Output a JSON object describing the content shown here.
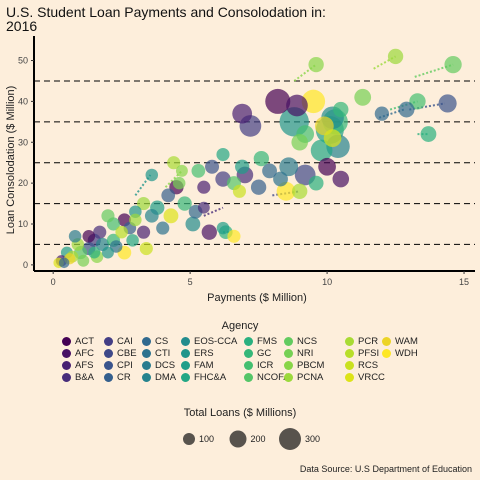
{
  "page": {
    "title": "U.S. Student Loan Payments and Consolodation in:\n2016",
    "source": "Data Source: U.S Department of Education"
  },
  "chart_data": {
    "type": "scatter",
    "title": "U.S. Student Loan Payments and Consolodation in:\n2016",
    "xlabel": "Payments ($ Million)",
    "ylabel": "Loan Consolodation ($ Million)",
    "xlim": [
      -0.7,
      15.4
    ],
    "ylim": [
      -1.5,
      56
    ],
    "xticks": [
      0,
      5,
      10,
      15
    ],
    "yticks": [
      0,
      10,
      20,
      30,
      40,
      50
    ],
    "hlines": [
      5,
      15,
      25,
      35,
      45
    ],
    "grid": false,
    "legend_title": "Agency",
    "size_legend_title": "Total Loans ($ Millions)",
    "size_legend_values": [
      100,
      200,
      300
    ],
    "agencies": [
      {
        "name": "ACT",
        "color": "#440154"
      },
      {
        "name": "AFC",
        "color": "#471164"
      },
      {
        "name": "AFS",
        "color": "#482072"
      },
      {
        "name": "B&A",
        "color": "#472d7b"
      },
      {
        "name": "CAI",
        "color": "#433e85"
      },
      {
        "name": "CBE",
        "color": "#3e4989"
      },
      {
        "name": "CPI",
        "color": "#3a548c"
      },
      {
        "name": "CR",
        "color": "#345f8d"
      },
      {
        "name": "CS",
        "color": "#30698e"
      },
      {
        "name": "CTI",
        "color": "#2c728e"
      },
      {
        "name": "DCS",
        "color": "#297b8e"
      },
      {
        "name": "DMA",
        "color": "#25838e"
      },
      {
        "name": "EOS-CCA",
        "color": "#228c8d"
      },
      {
        "name": "ERS",
        "color": "#1f958b"
      },
      {
        "name": "FAM",
        "color": "#1f9e89"
      },
      {
        "name": "FHC&A",
        "color": "#22a785"
      },
      {
        "name": "FMS",
        "color": "#2ab07f"
      },
      {
        "name": "GC",
        "color": "#35b779"
      },
      {
        "name": "ICR",
        "color": "#44bf70"
      },
      {
        "name": "NCOFA",
        "color": "#54c568"
      },
      {
        "name": "NCS",
        "color": "#62cb5f"
      },
      {
        "name": "NRI",
        "color": "#75d054"
      },
      {
        "name": "PBCM",
        "color": "#88d548"
      },
      {
        "name": "PCNA",
        "color": "#9bd93c"
      },
      {
        "name": "PCR",
        "color": "#a8db34"
      },
      {
        "name": "PFSI",
        "color": "#b8de29"
      },
      {
        "name": "RCS",
        "color": "#cae11f"
      },
      {
        "name": "VRCC",
        "color": "#dde318"
      },
      {
        "name": "WAM",
        "color": "#ecd426"
      },
      {
        "name": "WDH",
        "color": "#fde725"
      }
    ],
    "trails": [
      {
        "x": [
          3.0,
          3.55
        ],
        "y": [
          17,
          22
        ],
        "agency": "ERS"
      },
      {
        "x": [
          4.1,
          4.7
        ],
        "y": [
          19,
          23
        ],
        "agency": "PBCM"
      },
      {
        "x": [
          8.8,
          9.6
        ],
        "y": [
          45,
          49
        ],
        "agency": "PBCM"
      },
      {
        "x": [
          11.7,
          12.5
        ],
        "y": [
          48,
          51
        ],
        "agency": "PCNA"
      },
      {
        "x": [
          13.2,
          14.6
        ],
        "y": [
          46,
          49
        ],
        "agency": "NCS"
      },
      {
        "x": [
          11.9,
          12.8
        ],
        "y": [
          36,
          38
        ],
        "agency": "CS"
      },
      {
        "x": [
          12.3,
          13.3
        ],
        "y": [
          38,
          40
        ],
        "agency": "ICR"
      },
      {
        "x": [
          13.0,
          14.3
        ],
        "y": [
          38,
          39.5
        ],
        "agency": "CPI"
      },
      {
        "x": [
          13.3,
          13.7
        ],
        "y": [
          32,
          32
        ],
        "agency": "FMS"
      },
      {
        "x": [
          6.2,
          6.5
        ],
        "y": [
          8,
          8
        ],
        "agency": "FAM"
      },
      {
        "x": [
          5.5,
          6.2
        ],
        "y": [
          12,
          14
        ],
        "agency": "B&A"
      },
      {
        "x": [
          8.0,
          9.0
        ],
        "y": [
          17,
          18
        ],
        "agency": "CBE"
      }
    ],
    "points": [
      {
        "x": 9.6,
        "y": 49,
        "size": 30,
        "agency": "PBCM"
      },
      {
        "x": 12.5,
        "y": 51,
        "size": 30,
        "agency": "PCNA"
      },
      {
        "x": 14.6,
        "y": 49,
        "size": 38,
        "agency": "NCS"
      },
      {
        "x": 11.3,
        "y": 41,
        "size": 36,
        "agency": "NRI"
      },
      {
        "x": 12.9,
        "y": 38,
        "size": 32,
        "agency": "CS"
      },
      {
        "x": 13.3,
        "y": 40,
        "size": 34,
        "agency": "ICR"
      },
      {
        "x": 14.4,
        "y": 39.5,
        "size": 42,
        "agency": "CPI"
      },
      {
        "x": 13.7,
        "y": 32,
        "size": 32,
        "agency": "FMS"
      },
      {
        "x": 12.0,
        "y": 37,
        "size": 26,
        "agency": "CS"
      },
      {
        "x": 10.5,
        "y": 38,
        "size": 30,
        "agency": "GC"
      },
      {
        "x": 8.2,
        "y": 40,
        "size": 80,
        "agency": "ACT"
      },
      {
        "x": 8.9,
        "y": 39,
        "size": 60,
        "agency": "AFC"
      },
      {
        "x": 6.9,
        "y": 37,
        "size": 50,
        "agency": "AFS"
      },
      {
        "x": 7.2,
        "y": 34,
        "size": 60,
        "agency": "CAI"
      },
      {
        "x": 9.5,
        "y": 40,
        "size": 70,
        "agency": "WDH"
      },
      {
        "x": 10.2,
        "y": 36,
        "size": 65,
        "agency": "EOS-CCA"
      },
      {
        "x": 8.8,
        "y": 35,
        "size": 110,
        "agency": "ERS"
      },
      {
        "x": 10.1,
        "y": 33,
        "size": 100,
        "agency": "FAM"
      },
      {
        "x": 10.3,
        "y": 35,
        "size": 80,
        "agency": "GC"
      },
      {
        "x": 10.4,
        "y": 29,
        "size": 70,
        "agency": "DMA"
      },
      {
        "x": 9.8,
        "y": 28,
        "size": 60,
        "agency": "FHC&A"
      },
      {
        "x": 9.2,
        "y": 32,
        "size": 40,
        "agency": "ICR"
      },
      {
        "x": 9.0,
        "y": 30,
        "size": 35,
        "agency": "NRI"
      },
      {
        "x": 10.2,
        "y": 31,
        "size": 40,
        "agency": "VRCC"
      },
      {
        "x": 9.9,
        "y": 34,
        "size": 45,
        "agency": "WAM"
      },
      {
        "x": 9.2,
        "y": 22,
        "size": 55,
        "agency": "CBE"
      },
      {
        "x": 8.6,
        "y": 24,
        "size": 45,
        "agency": "DCS"
      },
      {
        "x": 10.0,
        "y": 24,
        "size": 40,
        "agency": "ACT"
      },
      {
        "x": 10.5,
        "y": 21,
        "size": 35,
        "agency": "AFC"
      },
      {
        "x": 9.6,
        "y": 20,
        "size": 28,
        "agency": "FMS"
      },
      {
        "x": 8.5,
        "y": 18,
        "size": 45,
        "agency": "WDH"
      },
      {
        "x": 9.0,
        "y": 18,
        "size": 30,
        "agency": "PCR"
      },
      {
        "x": 8.3,
        "y": 21,
        "size": 28,
        "agency": "CTI"
      },
      {
        "x": 7.5,
        "y": 19,
        "size": 30,
        "agency": "CR"
      },
      {
        "x": 7.0,
        "y": 22,
        "size": 35,
        "agency": "B&A"
      },
      {
        "x": 7.6,
        "y": 26,
        "size": 30,
        "agency": "GC"
      },
      {
        "x": 7.9,
        "y": 23,
        "size": 28,
        "agency": "CS"
      },
      {
        "x": 6.2,
        "y": 21,
        "size": 30,
        "agency": "CAI"
      },
      {
        "x": 6.9,
        "y": 24,
        "size": 26,
        "agency": "FAM"
      },
      {
        "x": 6.6,
        "y": 20,
        "size": 25,
        "agency": "NCOFA"
      },
      {
        "x": 6.2,
        "y": 27,
        "size": 22,
        "agency": "FHC&A"
      },
      {
        "x": 5.8,
        "y": 24,
        "size": 25,
        "agency": "CPI"
      },
      {
        "x": 5.5,
        "y": 19,
        "size": 22,
        "agency": "AFS"
      },
      {
        "x": 5.3,
        "y": 23,
        "size": 24,
        "agency": "ICR"
      },
      {
        "x": 6.8,
        "y": 18,
        "size": 22,
        "agency": "RCS"
      },
      {
        "x": 4.5,
        "y": 19,
        "size": 26,
        "agency": "ACT"
      },
      {
        "x": 4.2,
        "y": 17,
        "size": 24,
        "agency": "CR"
      },
      {
        "x": 3.6,
        "y": 22,
        "size": 20,
        "agency": "ERS"
      },
      {
        "x": 4.7,
        "y": 23,
        "size": 18,
        "agency": "PBCM"
      },
      {
        "x": 4.6,
        "y": 20,
        "size": 20,
        "agency": "NRI"
      },
      {
        "x": 4.4,
        "y": 25,
        "size": 22,
        "agency": "PCR"
      },
      {
        "x": 3.8,
        "y": 14,
        "size": 26,
        "agency": "FAM"
      },
      {
        "x": 3.3,
        "y": 15,
        "size": 22,
        "agency": "PCNA"
      },
      {
        "x": 3.6,
        "y": 12,
        "size": 24,
        "agency": "DMA"
      },
      {
        "x": 4.3,
        "y": 12,
        "size": 28,
        "agency": "VRCC"
      },
      {
        "x": 4.8,
        "y": 15,
        "size": 26,
        "agency": "GC"
      },
      {
        "x": 5.2,
        "y": 13,
        "size": 24,
        "agency": "CS"
      },
      {
        "x": 5.1,
        "y": 10,
        "size": 28,
        "agency": "EOS-CCA"
      },
      {
        "x": 5.7,
        "y": 8,
        "size": 30,
        "agency": "AFC"
      },
      {
        "x": 6.3,
        "y": 8,
        "size": 24,
        "agency": "FMS"
      },
      {
        "x": 6.6,
        "y": 7,
        "size": 22,
        "agency": "WDH"
      },
      {
        "x": 4.0,
        "y": 9,
        "size": 22,
        "agency": "CTI"
      },
      {
        "x": 3.3,
        "y": 8,
        "size": 22,
        "agency": "AFS"
      },
      {
        "x": 2.6,
        "y": 11,
        "size": 22,
        "agency": "ACT"
      },
      {
        "x": 2.8,
        "y": 9,
        "size": 20,
        "agency": "CR"
      },
      {
        "x": 2.2,
        "y": 10,
        "size": 22,
        "agency": "ICR"
      },
      {
        "x": 2.0,
        "y": 12,
        "size": 22,
        "agency": "NCS"
      },
      {
        "x": 3.0,
        "y": 13,
        "size": 20,
        "agency": "ERS"
      },
      {
        "x": 2.5,
        "y": 8,
        "size": 20,
        "agency": "PFSI"
      },
      {
        "x": 2.9,
        "y": 6,
        "size": 20,
        "agency": "FHC&A"
      },
      {
        "x": 3.4,
        "y": 4,
        "size": 22,
        "agency": "RCS"
      },
      {
        "x": 2.6,
        "y": 3,
        "size": 24,
        "agency": "WDH"
      },
      {
        "x": 1.7,
        "y": 8,
        "size": 22,
        "agency": "B&A"
      },
      {
        "x": 1.5,
        "y": 6,
        "size": 22,
        "agency": "CAI"
      },
      {
        "x": 1.8,
        "y": 5,
        "size": 22,
        "agency": "DMA"
      },
      {
        "x": 1.3,
        "y": 4,
        "size": 22,
        "agency": "CPI"
      },
      {
        "x": 2.2,
        "y": 6,
        "size": 22,
        "agency": "GC"
      },
      {
        "x": 1.0,
        "y": 3,
        "size": 22,
        "agency": "NCOFA"
      },
      {
        "x": 1.6,
        "y": 2,
        "size": 20,
        "agency": "PBCM"
      },
      {
        "x": 0.9,
        "y": 5,
        "size": 20,
        "agency": "PCNA"
      },
      {
        "x": 1.3,
        "y": 7,
        "size": 20,
        "agency": "ACT"
      },
      {
        "x": 0.8,
        "y": 7,
        "size": 20,
        "agency": "DCS"
      },
      {
        "x": 0.5,
        "y": 3,
        "size": 18,
        "agency": "FAM"
      },
      {
        "x": 0.7,
        "y": 2,
        "size": 18,
        "agency": "PCR"
      },
      {
        "x": 0.3,
        "y": 1,
        "size": 16,
        "agency": "AFS"
      },
      {
        "x": 0.2,
        "y": 0.5,
        "size": 14,
        "agency": "VRCC"
      },
      {
        "x": 0.4,
        "y": 0.5,
        "size": 14,
        "agency": "CS"
      },
      {
        "x": 0.6,
        "y": 1.5,
        "size": 16,
        "agency": "WAM"
      },
      {
        "x": 1.1,
        "y": 1,
        "size": 18,
        "agency": "NRI"
      },
      {
        "x": 1.5,
        "y": 3,
        "size": 18,
        "agency": "FMS"
      },
      {
        "x": 2.0,
        "y": 3,
        "size": 18,
        "agency": "ERS"
      },
      {
        "x": 2.3,
        "y": 4.5,
        "size": 20,
        "agency": "CTI"
      },
      {
        "x": 3.0,
        "y": 11,
        "size": 20,
        "agency": "PCNA"
      },
      {
        "x": 5.5,
        "y": 14,
        "size": 18,
        "agency": "B&A"
      },
      {
        "x": 6.2,
        "y": 9,
        "size": 20,
        "agency": "FAM"
      }
    ]
  }
}
